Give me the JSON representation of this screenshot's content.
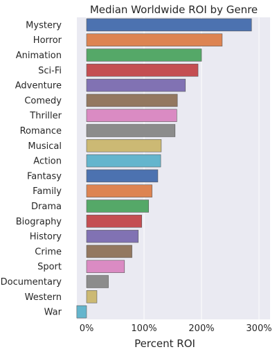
{
  "chart_data": {
    "type": "bar",
    "orientation": "horizontal",
    "title": "Median Worldwide ROI by Genre",
    "xlabel": "Percent ROI",
    "ylabel": "",
    "categories": [
      "Mystery",
      "Horror",
      "Animation",
      "Sci-Fi",
      "Adventure",
      "Comedy",
      "Thriller",
      "Romance",
      "Musical",
      "Action",
      "Fantasy",
      "Family",
      "Drama",
      "Biography",
      "History",
      "Crime",
      "Sport",
      "Documentary",
      "Western",
      "War"
    ],
    "values": [
      287,
      236,
      200,
      194,
      172,
      158,
      157,
      154,
      130,
      129,
      124,
      114,
      108,
      96,
      90,
      79,
      66,
      38,
      18,
      -17
    ],
    "xlim": [
      -20,
      300
    ],
    "xticks": [
      0,
      100,
      200,
      300
    ],
    "xtick_labels": [
      "0%",
      "100%",
      "200%",
      "300%"
    ],
    "grid": true,
    "colors": [
      "#4c72b0",
      "#dd8452",
      "#55a868",
      "#c44e52",
      "#8172b3",
      "#937860",
      "#da8bc3",
      "#8c8c8c",
      "#ccb974",
      "#64b5cd"
    ],
    "plot_background": "#eaeaf2",
    "legend": "none"
  }
}
